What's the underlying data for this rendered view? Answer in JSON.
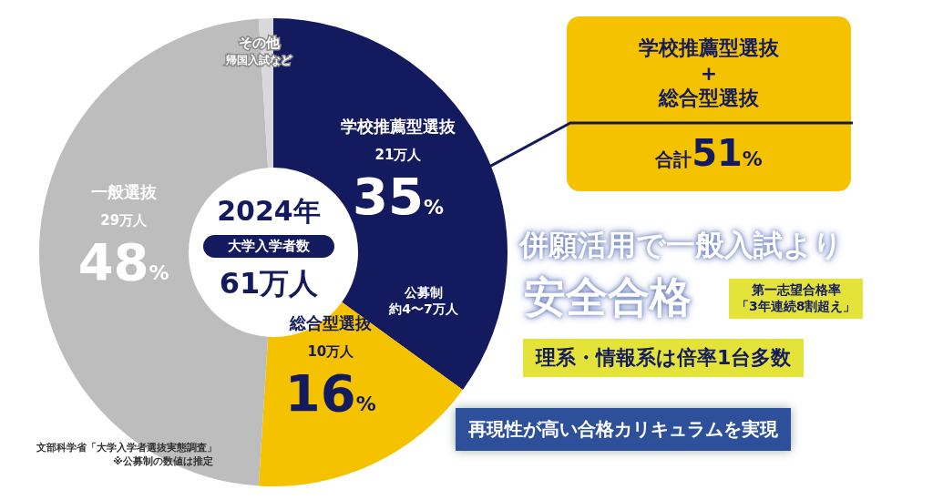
{
  "chart_data": {
    "type": "donut",
    "title": "2024年",
    "subtitle": "大学入学者数",
    "categories": [
      "学校推薦型選抜",
      "総合型選抜",
      "一般選抜",
      "その他"
    ],
    "values": [
      35,
      16,
      48,
      1
    ],
    "colors": [
      "#131a5e",
      "#f5c200",
      "#bdbdbd",
      "#d9d9d9"
    ],
    "value_labels": [
      "35%",
      "16%",
      "48%",
      null
    ],
    "legend": false,
    "annotations": [
      "21万人",
      "10万人",
      "29万人",
      "帰国入試など",
      "61万人",
      "公募制",
      "約4〜7万人",
      "学校推薦型選抜",
      "+",
      "総合型選抜",
      "合計51%",
      "併願活用で一般入試より",
      "安全合格",
      "第一志望合格率",
      "「3年連続8割超え」",
      "理系・情報系は倍率1台多数",
      "再現性が高い合格カリキュラムを実現",
      "文部科学省「大学入学者選抜実態調査」",
      "※公募制の数値は推定"
    ]
  }
}
